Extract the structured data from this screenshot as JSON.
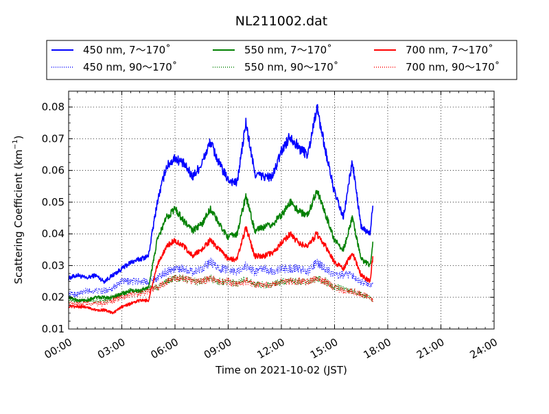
{
  "chart_data": {
    "type": "line",
    "title": "NL211002.dat",
    "xlabel": "Time on 2021-10-02 (JST)",
    "ylabel": "Scattering Coefficient (km",
    "ylabel_sup": "−1",
    "ylabel_close": ")",
    "xlim": [
      "00:00",
      "24:00"
    ],
    "ylim": [
      0.01,
      0.085
    ],
    "x_ticks": [
      "00:00",
      "03:00",
      "06:00",
      "09:00",
      "12:00",
      "15:00",
      "18:00",
      "21:00",
      "24:00"
    ],
    "y_ticks": [
      "0.01",
      "0.02",
      "0.03",
      "0.04",
      "0.05",
      "0.06",
      "0.07",
      "0.08"
    ],
    "grid": true,
    "legend_placement": "top, above plot",
    "series": [
      {
        "name": "450 nm, 7～170˚",
        "color": "#0000ff",
        "style": "solid",
        "x": [
          "00:00",
          "00:30",
          "01:00",
          "01:30",
          "02:00",
          "02:30",
          "03:00",
          "03:30",
          "04:00",
          "04:30",
          "05:00",
          "05:30",
          "06:00",
          "06:30",
          "07:00",
          "07:30",
          "08:00",
          "08:30",
          "09:00",
          "09:30",
          "10:00",
          "10:30",
          "11:00",
          "11:30",
          "12:00",
          "12:30",
          "13:00",
          "13:30",
          "14:00",
          "14:30",
          "15:00",
          "15:30",
          "16:00",
          "16:30",
          "17:00",
          "17:10"
        ],
        "values": [
          0.026,
          0.027,
          0.026,
          0.027,
          0.025,
          0.027,
          0.029,
          0.031,
          0.032,
          0.033,
          0.05,
          0.061,
          0.064,
          0.062,
          0.058,
          0.062,
          0.069,
          0.062,
          0.057,
          0.056,
          0.075,
          0.059,
          0.058,
          0.058,
          0.066,
          0.071,
          0.067,
          0.065,
          0.08,
          0.066,
          0.053,
          0.045,
          0.063,
          0.042,
          0.04,
          0.05
        ]
      },
      {
        "name": "450 nm, 90～170˚",
        "color": "#0000ff",
        "style": "dotted",
        "x": [
          "00:00",
          "00:30",
          "01:00",
          "01:30",
          "02:00",
          "02:30",
          "03:00",
          "03:30",
          "04:00",
          "04:30",
          "05:00",
          "05:30",
          "06:00",
          "06:30",
          "07:00",
          "07:30",
          "08:00",
          "08:30",
          "09:00",
          "09:30",
          "10:00",
          "10:30",
          "11:00",
          "11:30",
          "12:00",
          "12:30",
          "13:00",
          "13:30",
          "14:00",
          "14:30",
          "15:00",
          "15:30",
          "16:00",
          "16:30",
          "17:00",
          "17:10"
        ],
        "values": [
          0.021,
          0.021,
          0.022,
          0.022,
          0.022,
          0.023,
          0.025,
          0.025,
          0.025,
          0.025,
          0.026,
          0.028,
          0.029,
          0.029,
          0.028,
          0.029,
          0.031,
          0.029,
          0.029,
          0.028,
          0.03,
          0.028,
          0.029,
          0.028,
          0.029,
          0.029,
          0.029,
          0.028,
          0.031,
          0.029,
          0.027,
          0.027,
          0.027,
          0.025,
          0.024,
          0.024
        ]
      },
      {
        "name": "550 nm, 7～170˚",
        "color": "#008000",
        "style": "solid",
        "x": [
          "00:00",
          "00:30",
          "01:00",
          "01:30",
          "02:00",
          "02:30",
          "03:00",
          "03:30",
          "04:00",
          "04:30",
          "05:00",
          "05:30",
          "06:00",
          "06:30",
          "07:00",
          "07:30",
          "08:00",
          "08:30",
          "09:00",
          "09:30",
          "10:00",
          "10:30",
          "11:00",
          "11:30",
          "12:00",
          "12:30",
          "13:00",
          "13:30",
          "14:00",
          "14:30",
          "15:00",
          "15:30",
          "16:00",
          "16:30",
          "17:00",
          "17:10"
        ],
        "values": [
          0.02,
          0.019,
          0.019,
          0.02,
          0.02,
          0.02,
          0.021,
          0.022,
          0.022,
          0.023,
          0.038,
          0.045,
          0.048,
          0.044,
          0.041,
          0.043,
          0.048,
          0.043,
          0.039,
          0.04,
          0.052,
          0.041,
          0.042,
          0.043,
          0.046,
          0.05,
          0.047,
          0.046,
          0.054,
          0.046,
          0.038,
          0.035,
          0.045,
          0.032,
          0.03,
          0.037
        ]
      },
      {
        "name": "550 nm, 90～170˚",
        "color": "#008000",
        "style": "dotted",
        "x": [
          "00:00",
          "00:30",
          "01:00",
          "01:30",
          "02:00",
          "02:30",
          "03:00",
          "03:30",
          "04:00",
          "04:30",
          "05:00",
          "05:30",
          "06:00",
          "06:30",
          "07:00",
          "07:30",
          "08:00",
          "08:30",
          "09:00",
          "09:30",
          "10:00",
          "10:30",
          "11:00",
          "11:30",
          "12:00",
          "12:30",
          "13:00",
          "13:30",
          "14:00",
          "14:30",
          "15:00",
          "15:30",
          "16:00",
          "16:30",
          "17:00",
          "17:10"
        ],
        "values": [
          0.019,
          0.019,
          0.019,
          0.019,
          0.019,
          0.02,
          0.021,
          0.022,
          0.022,
          0.023,
          0.023,
          0.025,
          0.026,
          0.026,
          0.025,
          0.025,
          0.026,
          0.025,
          0.025,
          0.024,
          0.026,
          0.024,
          0.024,
          0.024,
          0.025,
          0.025,
          0.025,
          0.025,
          0.026,
          0.025,
          0.023,
          0.023,
          0.022,
          0.021,
          0.02,
          0.019
        ]
      },
      {
        "name": "700 nm, 7～170˚",
        "color": "#ff0000",
        "style": "solid",
        "x": [
          "00:00",
          "00:30",
          "01:00",
          "01:30",
          "02:00",
          "02:30",
          "03:00",
          "03:30",
          "04:00",
          "04:30",
          "05:00",
          "05:30",
          "06:00",
          "06:30",
          "07:00",
          "07:30",
          "08:00",
          "08:30",
          "09:00",
          "09:30",
          "10:00",
          "10:30",
          "11:00",
          "11:30",
          "12:00",
          "12:30",
          "13:00",
          "13:30",
          "14:00",
          "14:30",
          "15:00",
          "15:30",
          "16:00",
          "16:30",
          "17:00",
          "17:10"
        ],
        "values": [
          0.017,
          0.017,
          0.017,
          0.016,
          0.016,
          0.015,
          0.017,
          0.018,
          0.019,
          0.019,
          0.03,
          0.036,
          0.038,
          0.036,
          0.033,
          0.035,
          0.038,
          0.035,
          0.032,
          0.032,
          0.042,
          0.033,
          0.033,
          0.034,
          0.037,
          0.04,
          0.037,
          0.036,
          0.04,
          0.036,
          0.031,
          0.029,
          0.034,
          0.027,
          0.025,
          0.033
        ]
      },
      {
        "name": "700 nm, 90～170˚",
        "color": "#ff0000",
        "style": "dotted",
        "x": [
          "00:00",
          "00:30",
          "01:00",
          "01:30",
          "02:00",
          "02:30",
          "03:00",
          "03:30",
          "04:00",
          "04:30",
          "05:00",
          "05:30",
          "06:00",
          "06:30",
          "07:00",
          "07:30",
          "08:00",
          "08:30",
          "09:00",
          "09:30",
          "10:00",
          "10:30",
          "11:00",
          "11:30",
          "12:00",
          "12:30",
          "13:00",
          "13:30",
          "14:00",
          "14:30",
          "15:00",
          "15:30",
          "16:00",
          "16:30",
          "17:00",
          "17:10"
        ],
        "values": [
          0.018,
          0.018,
          0.018,
          0.018,
          0.018,
          0.019,
          0.02,
          0.021,
          0.021,
          0.022,
          0.023,
          0.025,
          0.026,
          0.026,
          0.025,
          0.025,
          0.026,
          0.025,
          0.025,
          0.024,
          0.025,
          0.024,
          0.024,
          0.024,
          0.025,
          0.025,
          0.025,
          0.025,
          0.026,
          0.025,
          0.023,
          0.022,
          0.022,
          0.021,
          0.02,
          0.019
        ]
      }
    ]
  }
}
